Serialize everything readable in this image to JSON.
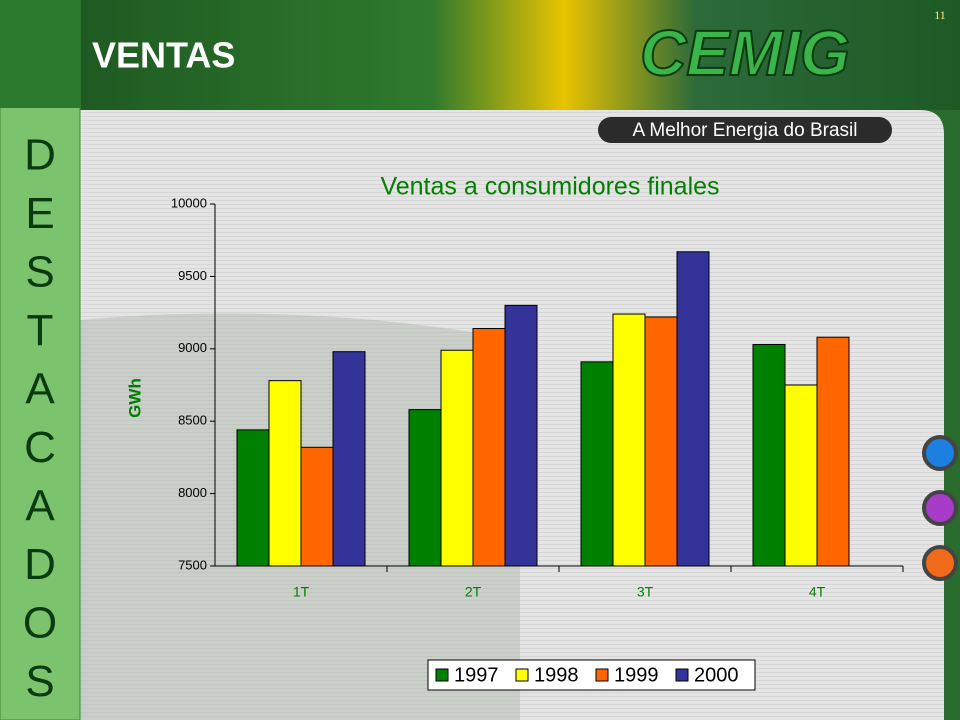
{
  "page_number": "11",
  "header": {
    "title": "VENTAS",
    "logo": "CEMIG",
    "tagline": "A Melhor Energia do Brasil"
  },
  "sidebar": [
    "D",
    "E",
    "S",
    "T",
    "A",
    "C",
    "A",
    "D",
    "O",
    "S"
  ],
  "chart_data": {
    "type": "bar",
    "title": "Ventas a consumidores finales",
    "y_label": "GWh",
    "categories": [
      "1T",
      "2T",
      "3T",
      "4T"
    ],
    "series": [
      {
        "name": "1997",
        "color": "#008000",
        "values": [
          8440,
          8580,
          8910,
          9030
        ]
      },
      {
        "name": "1998",
        "color": "#ffff00",
        "values": [
          8780,
          8990,
          9240,
          8750
        ]
      },
      {
        "name": "1999",
        "color": "#ff6600",
        "values": [
          8320,
          9140,
          9220,
          9080
        ]
      },
      {
        "name": "2000",
        "color": "#333399",
        "values": [
          8980,
          9300,
          9670,
          null
        ]
      }
    ],
    "ylim": [
      7500,
      10000
    ],
    "yticks": [
      7500,
      8000,
      8500,
      9000,
      9500,
      10000
    ],
    "grid": false,
    "legend": "bottom"
  }
}
